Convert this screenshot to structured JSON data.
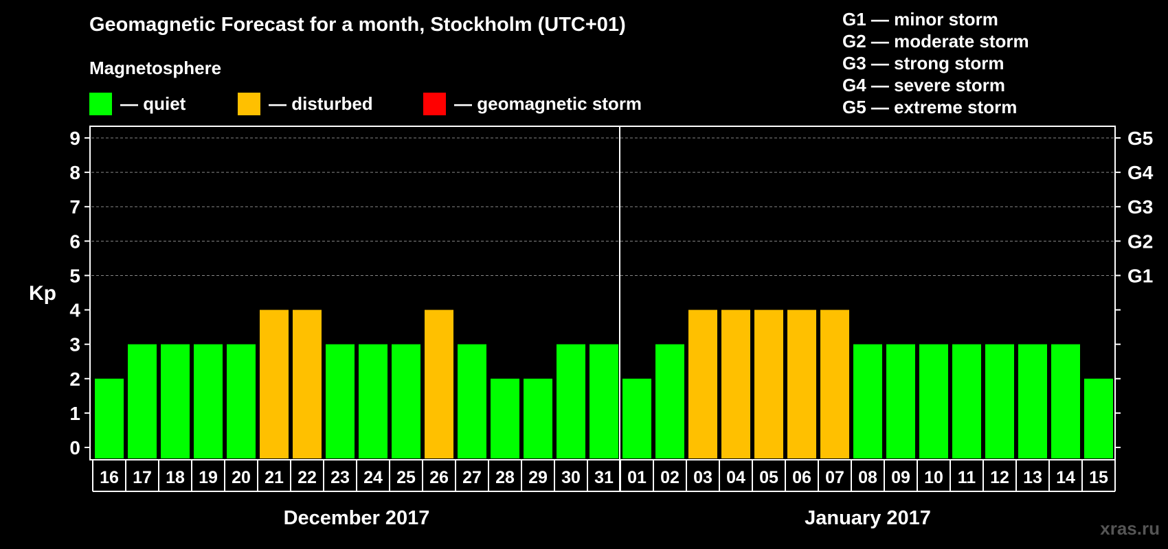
{
  "chart_data": {
    "type": "bar",
    "title": "Geomagnetic Forecast for a month, Stockholm (UTC+01)",
    "subtitle": "Magnetosphere",
    "ylabel": "Kp",
    "ylim": [
      0,
      9
    ],
    "yticks": [
      "0",
      "1",
      "2",
      "3",
      "4",
      "5",
      "6",
      "7",
      "8",
      "9"
    ],
    "storm_levels": [
      {
        "kp": 5,
        "label": "G1"
      },
      {
        "kp": 6,
        "label": "G2"
      },
      {
        "kp": 7,
        "label": "G3"
      },
      {
        "kp": 8,
        "label": "G4"
      },
      {
        "kp": 9,
        "label": "G5"
      }
    ],
    "categories": [
      "16",
      "17",
      "18",
      "19",
      "20",
      "21",
      "22",
      "23",
      "24",
      "25",
      "26",
      "27",
      "28",
      "29",
      "30",
      "31",
      "01",
      "02",
      "03",
      "04",
      "05",
      "06",
      "07",
      "08",
      "09",
      "10",
      "11",
      "12",
      "13",
      "14",
      "15"
    ],
    "values": [
      2,
      3,
      3,
      3,
      3,
      4,
      4,
      3,
      3,
      3,
      4,
      3,
      2,
      2,
      3,
      3,
      2,
      3,
      4,
      4,
      4,
      4,
      4,
      3,
      3,
      3,
      3,
      3,
      3,
      3,
      2
    ],
    "months": [
      {
        "label": "December 2017",
        "start": 0,
        "count": 16
      },
      {
        "label": "January 2017",
        "start": 16,
        "count": 15
      }
    ],
    "legend": [
      {
        "label": "— quiet",
        "color": "#00FF00"
      },
      {
        "label": "— disturbed",
        "color": "#FFC000"
      },
      {
        "label": "— geomagnetic storm",
        "color": "#FF0000"
      }
    ],
    "storm_legend": [
      "G1 — minor storm",
      "G2 — moderate storm",
      "G3 — strong storm",
      "G4 — severe storm",
      "G5 — extreme storm"
    ]
  },
  "watermark": "xras.ru"
}
